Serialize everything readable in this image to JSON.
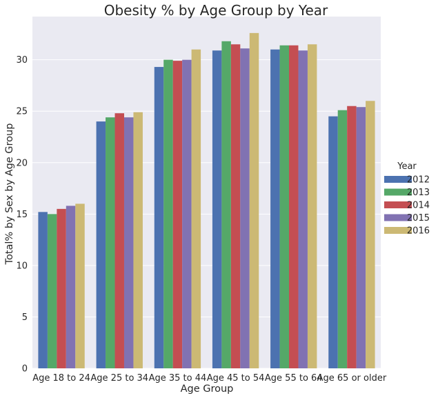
{
  "chart_data": {
    "type": "bar",
    "title": "Obesity % by Age Group by Year",
    "xlabel": "Age Group",
    "ylabel": "Total% by Sex by Age Group",
    "ylim": [
      0,
      34.2
    ],
    "yticks": [
      0,
      5,
      10,
      15,
      20,
      25,
      30
    ],
    "grid": true,
    "legend_position": "right",
    "legend_title": "Year",
    "categories": [
      "Age 18 to 24",
      "Age 25 to 34",
      "Age 35 to 44",
      "Age 45 to 54",
      "Age 55 to 64",
      "Age 65 or older"
    ],
    "series": [
      {
        "name": "2012",
        "color": "#4c72b0",
        "values": [
          15.2,
          24.0,
          29.3,
          30.9,
          31.0,
          24.5
        ]
      },
      {
        "name": "2013",
        "color": "#55a868",
        "values": [
          15.0,
          24.4,
          30.0,
          31.8,
          31.4,
          25.1
        ]
      },
      {
        "name": "2014",
        "color": "#c44e52",
        "values": [
          15.5,
          24.8,
          29.9,
          31.5,
          31.4,
          25.5
        ]
      },
      {
        "name": "2015",
        "color": "#8172b2",
        "values": [
          15.8,
          24.4,
          30.0,
          31.1,
          30.9,
          25.4
        ]
      },
      {
        "name": "2016",
        "color": "#ccb974",
        "values": [
          16.0,
          24.9,
          31.0,
          32.6,
          31.5,
          26.0
        ]
      }
    ]
  },
  "style": {
    "plot_background": "#eaeaf2",
    "grid_color": "#ffffff",
    "text_color": "#262626"
  }
}
